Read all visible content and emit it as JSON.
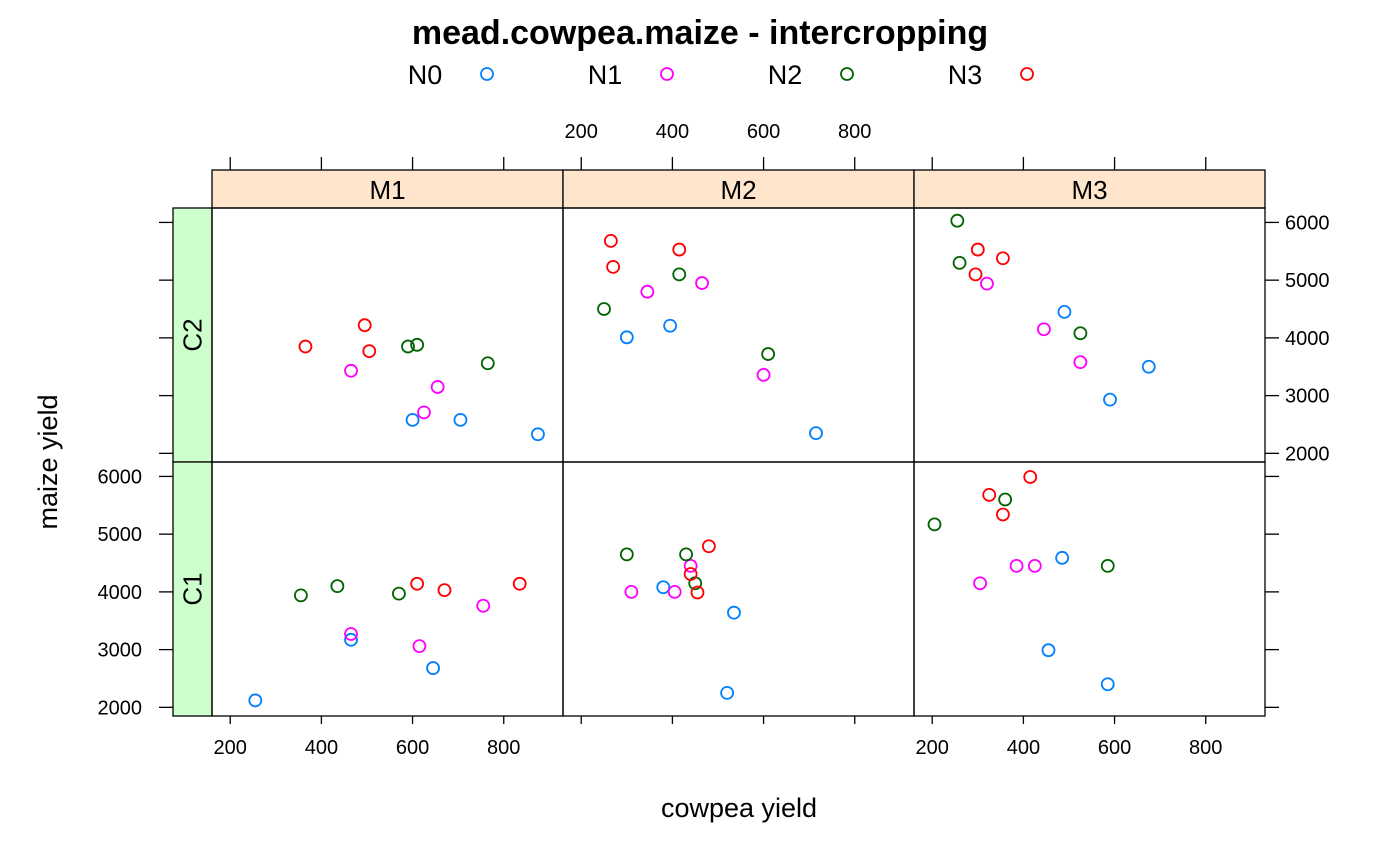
{
  "chart_data": {
    "type": "scatter",
    "title": "mead.cowpea.maize - intercropping",
    "xlabel": "cowpea yield",
    "ylabel": "maize yield",
    "xlim": [
      160,
      930
    ],
    "ylim": [
      1850,
      6250
    ],
    "x_ticks": [
      200,
      400,
      600,
      800
    ],
    "y_ticks": [
      2000,
      3000,
      4000,
      5000,
      6000
    ],
    "columns": [
      "M1",
      "M2",
      "M3"
    ],
    "rows": [
      "C2",
      "C1"
    ],
    "strip_colors": {
      "column": "#ffe5cc",
      "row": "#ccffcc"
    },
    "legend": [
      {
        "name": "N0",
        "color": "#0080ff"
      },
      {
        "name": "N1",
        "color": "#ff00ff"
      },
      {
        "name": "N2",
        "color": "#006400"
      },
      {
        "name": "N3",
        "color": "#ff0000"
      }
    ],
    "panels": [
      {
        "col": "M1",
        "row": "C2",
        "points": [
          {
            "g": "N0",
            "x": 600,
            "y": 2580
          },
          {
            "g": "N0",
            "x": 705,
            "y": 2580
          },
          {
            "g": "N0",
            "x": 875,
            "y": 2330
          },
          {
            "g": "N1",
            "x": 465,
            "y": 3430
          },
          {
            "g": "N1",
            "x": 625,
            "y": 2710
          },
          {
            "g": "N1",
            "x": 655,
            "y": 3150
          },
          {
            "g": "N2",
            "x": 590,
            "y": 3850
          },
          {
            "g": "N2",
            "x": 610,
            "y": 3880
          },
          {
            "g": "N2",
            "x": 765,
            "y": 3560
          },
          {
            "g": "N3",
            "x": 365,
            "y": 3850
          },
          {
            "g": "N3",
            "x": 495,
            "y": 4220
          },
          {
            "g": "N3",
            "x": 505,
            "y": 3770
          }
        ]
      },
      {
        "col": "M2",
        "row": "C2",
        "points": [
          {
            "g": "N0",
            "x": 300,
            "y": 4010
          },
          {
            "g": "N0",
            "x": 395,
            "y": 4210
          },
          {
            "g": "N0",
            "x": 715,
            "y": 2350
          },
          {
            "g": "N1",
            "x": 345,
            "y": 4800
          },
          {
            "g": "N1",
            "x": 465,
            "y": 4950
          },
          {
            "g": "N1",
            "x": 600,
            "y": 3360
          },
          {
            "g": "N2",
            "x": 250,
            "y": 4500
          },
          {
            "g": "N2",
            "x": 415,
            "y": 5100
          },
          {
            "g": "N2",
            "x": 610,
            "y": 3720
          },
          {
            "g": "N3",
            "x": 265,
            "y": 5680
          },
          {
            "g": "N3",
            "x": 270,
            "y": 5230
          },
          {
            "g": "N3",
            "x": 415,
            "y": 5530
          }
        ]
      },
      {
        "col": "M3",
        "row": "C2",
        "points": [
          {
            "g": "N0",
            "x": 490,
            "y": 4450
          },
          {
            "g": "N0",
            "x": 590,
            "y": 2930
          },
          {
            "g": "N0",
            "x": 675,
            "y": 3500
          },
          {
            "g": "N1",
            "x": 320,
            "y": 4940
          },
          {
            "g": "N1",
            "x": 445,
            "y": 4150
          },
          {
            "g": "N1",
            "x": 525,
            "y": 3580
          },
          {
            "g": "N2",
            "x": 255,
            "y": 6030
          },
          {
            "g": "N2",
            "x": 260,
            "y": 5300
          },
          {
            "g": "N2",
            "x": 525,
            "y": 4080
          },
          {
            "g": "N3",
            "x": 295,
            "y": 5100
          },
          {
            "g": "N3",
            "x": 300,
            "y": 5530
          },
          {
            "g": "N3",
            "x": 355,
            "y": 5380
          }
        ]
      },
      {
        "col": "M1",
        "row": "C1",
        "points": [
          {
            "g": "N0",
            "x": 255,
            "y": 2120
          },
          {
            "g": "N0",
            "x": 465,
            "y": 3170
          },
          {
            "g": "N0",
            "x": 645,
            "y": 2680
          },
          {
            "g": "N1",
            "x": 465,
            "y": 3270
          },
          {
            "g": "N1",
            "x": 615,
            "y": 3060
          },
          {
            "g": "N1",
            "x": 755,
            "y": 3760
          },
          {
            "g": "N2",
            "x": 355,
            "y": 3940
          },
          {
            "g": "N2",
            "x": 435,
            "y": 4100
          },
          {
            "g": "N2",
            "x": 570,
            "y": 3970
          },
          {
            "g": "N3",
            "x": 610,
            "y": 4140
          },
          {
            "g": "N3",
            "x": 670,
            "y": 4030
          },
          {
            "g": "N3",
            "x": 835,
            "y": 4140
          }
        ]
      },
      {
        "col": "M2",
        "row": "C1",
        "points": [
          {
            "g": "N0",
            "x": 380,
            "y": 4080
          },
          {
            "g": "N0",
            "x": 520,
            "y": 2250
          },
          {
            "g": "N0",
            "x": 535,
            "y": 3640
          },
          {
            "g": "N1",
            "x": 310,
            "y": 4000
          },
          {
            "g": "N1",
            "x": 405,
            "y": 4000
          },
          {
            "g": "N1",
            "x": 440,
            "y": 4450
          },
          {
            "g": "N2",
            "x": 300,
            "y": 4650
          },
          {
            "g": "N2",
            "x": 430,
            "y": 4650
          },
          {
            "g": "N2",
            "x": 450,
            "y": 4150
          },
          {
            "g": "N3",
            "x": 440,
            "y": 4310
          },
          {
            "g": "N3",
            "x": 455,
            "y": 3990
          },
          {
            "g": "N3",
            "x": 480,
            "y": 4790
          }
        ]
      },
      {
        "col": "M3",
        "row": "C1",
        "points": [
          {
            "g": "N0",
            "x": 455,
            "y": 2990
          },
          {
            "g": "N0",
            "x": 485,
            "y": 4590
          },
          {
            "g": "N0",
            "x": 585,
            "y": 2400
          },
          {
            "g": "N1",
            "x": 305,
            "y": 4150
          },
          {
            "g": "N1",
            "x": 385,
            "y": 4450
          },
          {
            "g": "N1",
            "x": 425,
            "y": 4450
          },
          {
            "g": "N2",
            "x": 205,
            "y": 5170
          },
          {
            "g": "N2",
            "x": 360,
            "y": 5600
          },
          {
            "g": "N2",
            "x": 585,
            "y": 4450
          },
          {
            "g": "N3",
            "x": 325,
            "y": 5680
          },
          {
            "g": "N3",
            "x": 355,
            "y": 5340
          },
          {
            "g": "N3",
            "x": 415,
            "y": 5990
          }
        ]
      }
    ]
  }
}
